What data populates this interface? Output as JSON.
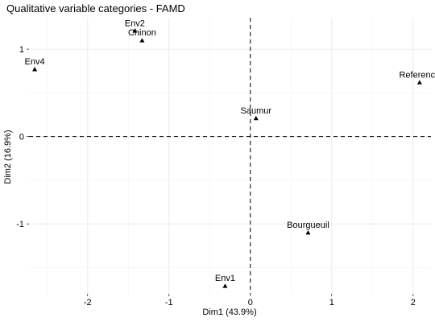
{
  "chart_data": {
    "type": "scatter",
    "title": "Qualitative variable categories - FAMD",
    "xlabel": "Dim1 (43.9%)",
    "ylabel": "Dim2 (16.9%)",
    "xlim": [
      -2.72,
      2.22
    ],
    "ylim": [
      -1.8,
      1.36
    ],
    "x_ticks": [
      -2,
      -1,
      0,
      1,
      2
    ],
    "x_tick_labels": [
      "-2",
      "-1",
      "0",
      "1",
      "2"
    ],
    "y_ticks": [
      -1,
      0,
      1
    ],
    "y_tick_labels": [
      "-1",
      "0",
      "1"
    ],
    "grid": true,
    "reference_lines": {
      "x": 0,
      "y": 0,
      "style": "dashed"
    },
    "marker": "triangle",
    "marker_color": "#000000",
    "points": [
      {
        "label": "Env2",
        "x": -1.42,
        "y": 1.21
      },
      {
        "label": "Chinon",
        "x": -1.33,
        "y": 1.1
      },
      {
        "label": "Env4",
        "x": -2.65,
        "y": 0.77
      },
      {
        "label": "Reference",
        "x": 2.08,
        "y": 0.62
      },
      {
        "label": "Saumur",
        "x": 0.07,
        "y": 0.21
      },
      {
        "label": "Bourgueuil",
        "x": 0.71,
        "y": -1.1
      },
      {
        "label": "Env1",
        "x": -0.31,
        "y": -1.71
      }
    ]
  }
}
